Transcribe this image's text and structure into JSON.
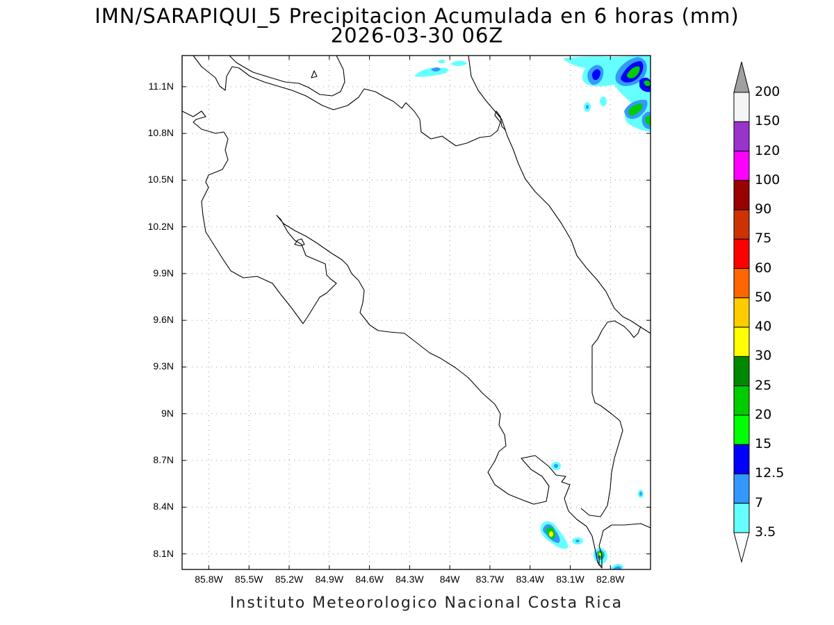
{
  "title_line1": "IMN/SARAPIQUI_5 Precipitacion Acumulada en 6 horas (mm)",
  "title_line2": "2026-03-30 06Z",
  "footer": "Instituto Meteorologico Nacional Costa Rica",
  "map": {
    "lon_range": [
      -86.0,
      -82.5
    ],
    "lat_range": [
      8.0,
      11.3
    ],
    "lat_labels": [
      "11.1N",
      "10.8N",
      "10.5N",
      "10.2N",
      "9.9N",
      "9.6N",
      "9.3N",
      "9N",
      "8.7N",
      "8.4N",
      "8.1N"
    ],
    "lat_values": [
      11.1,
      10.8,
      10.5,
      10.2,
      9.9,
      9.6,
      9.3,
      9.0,
      8.7,
      8.4,
      8.1
    ],
    "lon_labels": [
      "85.8W",
      "85.5W",
      "85.2W",
      "84.9W",
      "84.6W",
      "84.3W",
      "84W",
      "83.7W",
      "83.4W",
      "83.1W",
      "82.8W"
    ],
    "lon_values": [
      -85.8,
      -85.5,
      -85.2,
      -84.9,
      -84.6,
      -84.3,
      -84.0,
      -83.7,
      -83.4,
      -83.1,
      -82.8
    ],
    "grid": true,
    "grid_style": "dotted"
  },
  "colorbar": {
    "labels": [
      "200",
      "150",
      "120",
      "100",
      "90",
      "75",
      "60",
      "50",
      "40",
      "30",
      "25",
      "20",
      "15",
      "12.5",
      "7",
      "3.5"
    ],
    "colors": [
      "#f5f5f5",
      "#9933cc",
      "#ff00ff",
      "#990000",
      "#cc3300",
      "#ff0000",
      "#ff6600",
      "#ffcc00",
      "#ffff00",
      "#008800",
      "#00cc00",
      "#00ff00",
      "#0000ff",
      "#3399ff",
      "#66ffff"
    ],
    "upper_arrow_color": "#a0a0a0",
    "lower_arrow_color": "#ffffff"
  }
}
